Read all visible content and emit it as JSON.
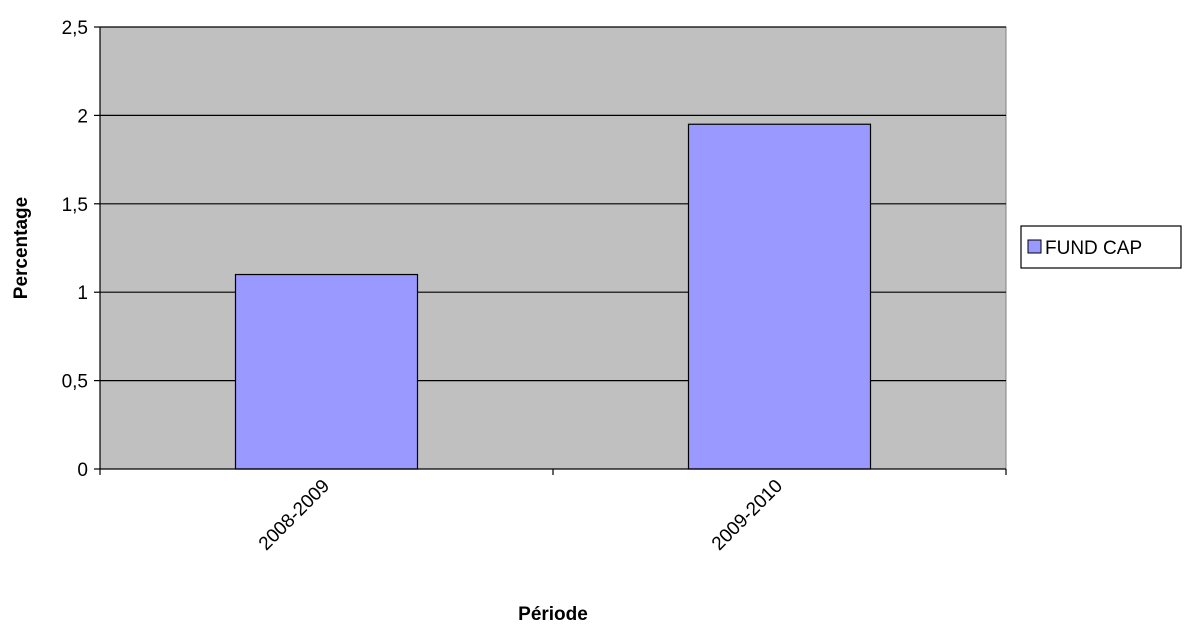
{
  "chart_data": {
    "type": "bar",
    "categories": [
      "2008-2009",
      "2009-2010"
    ],
    "series": [
      {
        "name": "FUND CAP",
        "values": [
          1.1,
          1.95
        ],
        "color": "#9999ff"
      }
    ],
    "xlabel": "Période",
    "ylabel": "Percentage",
    "ylim": [
      0,
      2.5
    ],
    "yticks": [
      0,
      0.5,
      1,
      1.5,
      2,
      2.5
    ],
    "ytick_labels": [
      "0",
      "0,5",
      "1",
      "1,5",
      "2",
      "2,5"
    ],
    "grid": true,
    "legend": "right",
    "plot_background": "#c0c0c0"
  }
}
